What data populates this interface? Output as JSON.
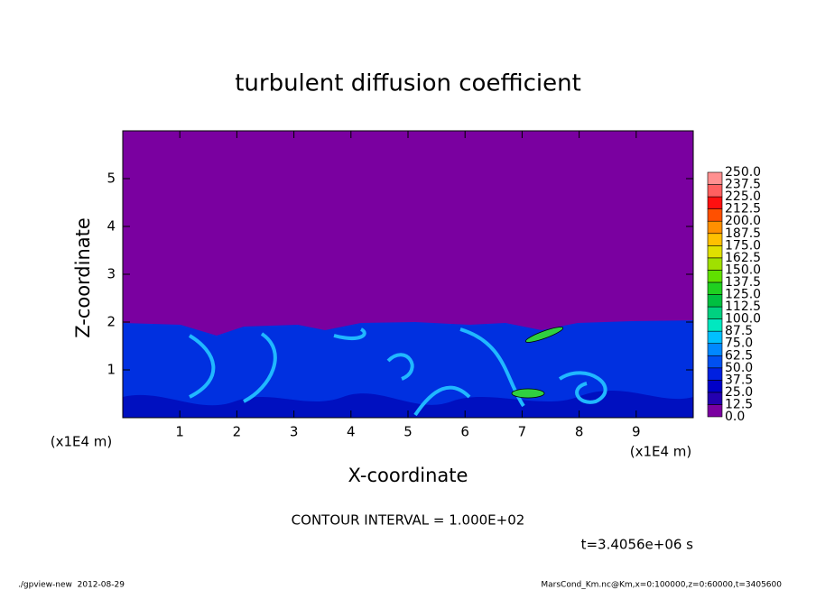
{
  "chart_data": {
    "type": "contour",
    "title": "turbulent diffusion coefficient",
    "x_label": "X-coordinate",
    "y_label": "Z-coordinate",
    "x_unit": "(x1E4 m)",
    "y_unit": "(x1E4 m)",
    "xlim": [
      0,
      10
    ],
    "ylim": [
      0,
      6
    ],
    "xticks": [
      1,
      2,
      3,
      4,
      5,
      6,
      7,
      8,
      9
    ],
    "yticks": [
      1,
      2,
      3,
      4,
      5
    ],
    "colorbar": {
      "ticks": [
        {
          "value": 0,
          "label": "0.0"
        },
        {
          "value": 12.5,
          "label": "12.5"
        },
        {
          "value": 25,
          "label": "25.0"
        },
        {
          "value": 37.5,
          "label": "37.5"
        },
        {
          "value": 50,
          "label": "50.0"
        },
        {
          "value": 62.5,
          "label": "62.5"
        },
        {
          "value": 75,
          "label": "75.0"
        },
        {
          "value": 87.5,
          "label": "87.5"
        },
        {
          "value": 100,
          "label": "100.0"
        },
        {
          "value": 112.5,
          "label": "112.5"
        },
        {
          "value": 125,
          "label": "125.0"
        },
        {
          "value": 137.5,
          "label": "137.5"
        },
        {
          "value": 150,
          "label": "150.0"
        },
        {
          "value": 162.5,
          "label": "162.5"
        },
        {
          "value": 175,
          "label": "175.0"
        },
        {
          "value": 187.5,
          "label": "187.5"
        },
        {
          "value": 200,
          "label": "200.0"
        },
        {
          "value": 212.5,
          "label": "212.5"
        },
        {
          "value": 225,
          "label": "225.0"
        },
        {
          "value": 237.5,
          "label": "237.5"
        },
        {
          "value": 250,
          "label": "250.0"
        }
      ],
      "colors": [
        "#7a00a0",
        "#2400b0",
        "#0000c8",
        "#0020e0",
        "#0050f0",
        "#0088ff",
        "#00c0ff",
        "#00e8c0",
        "#00d080",
        "#00c040",
        "#20d020",
        "#60e000",
        "#a0e000",
        "#e0e000",
        "#ffc000",
        "#ff9000",
        "#ff5000",
        "#ff1010",
        "#ff6060",
        "#ff9090"
      ]
    },
    "contour_interval": "CONTOUR INTERVAL = 1.000E+02",
    "time": "t=3.4056e+06 s"
  },
  "footer": {
    "left": "./gpview-new  2012-08-29",
    "right": "MarsCond_Km.nc@Km,x=0:100000,z=0:60000,t=3405600"
  }
}
